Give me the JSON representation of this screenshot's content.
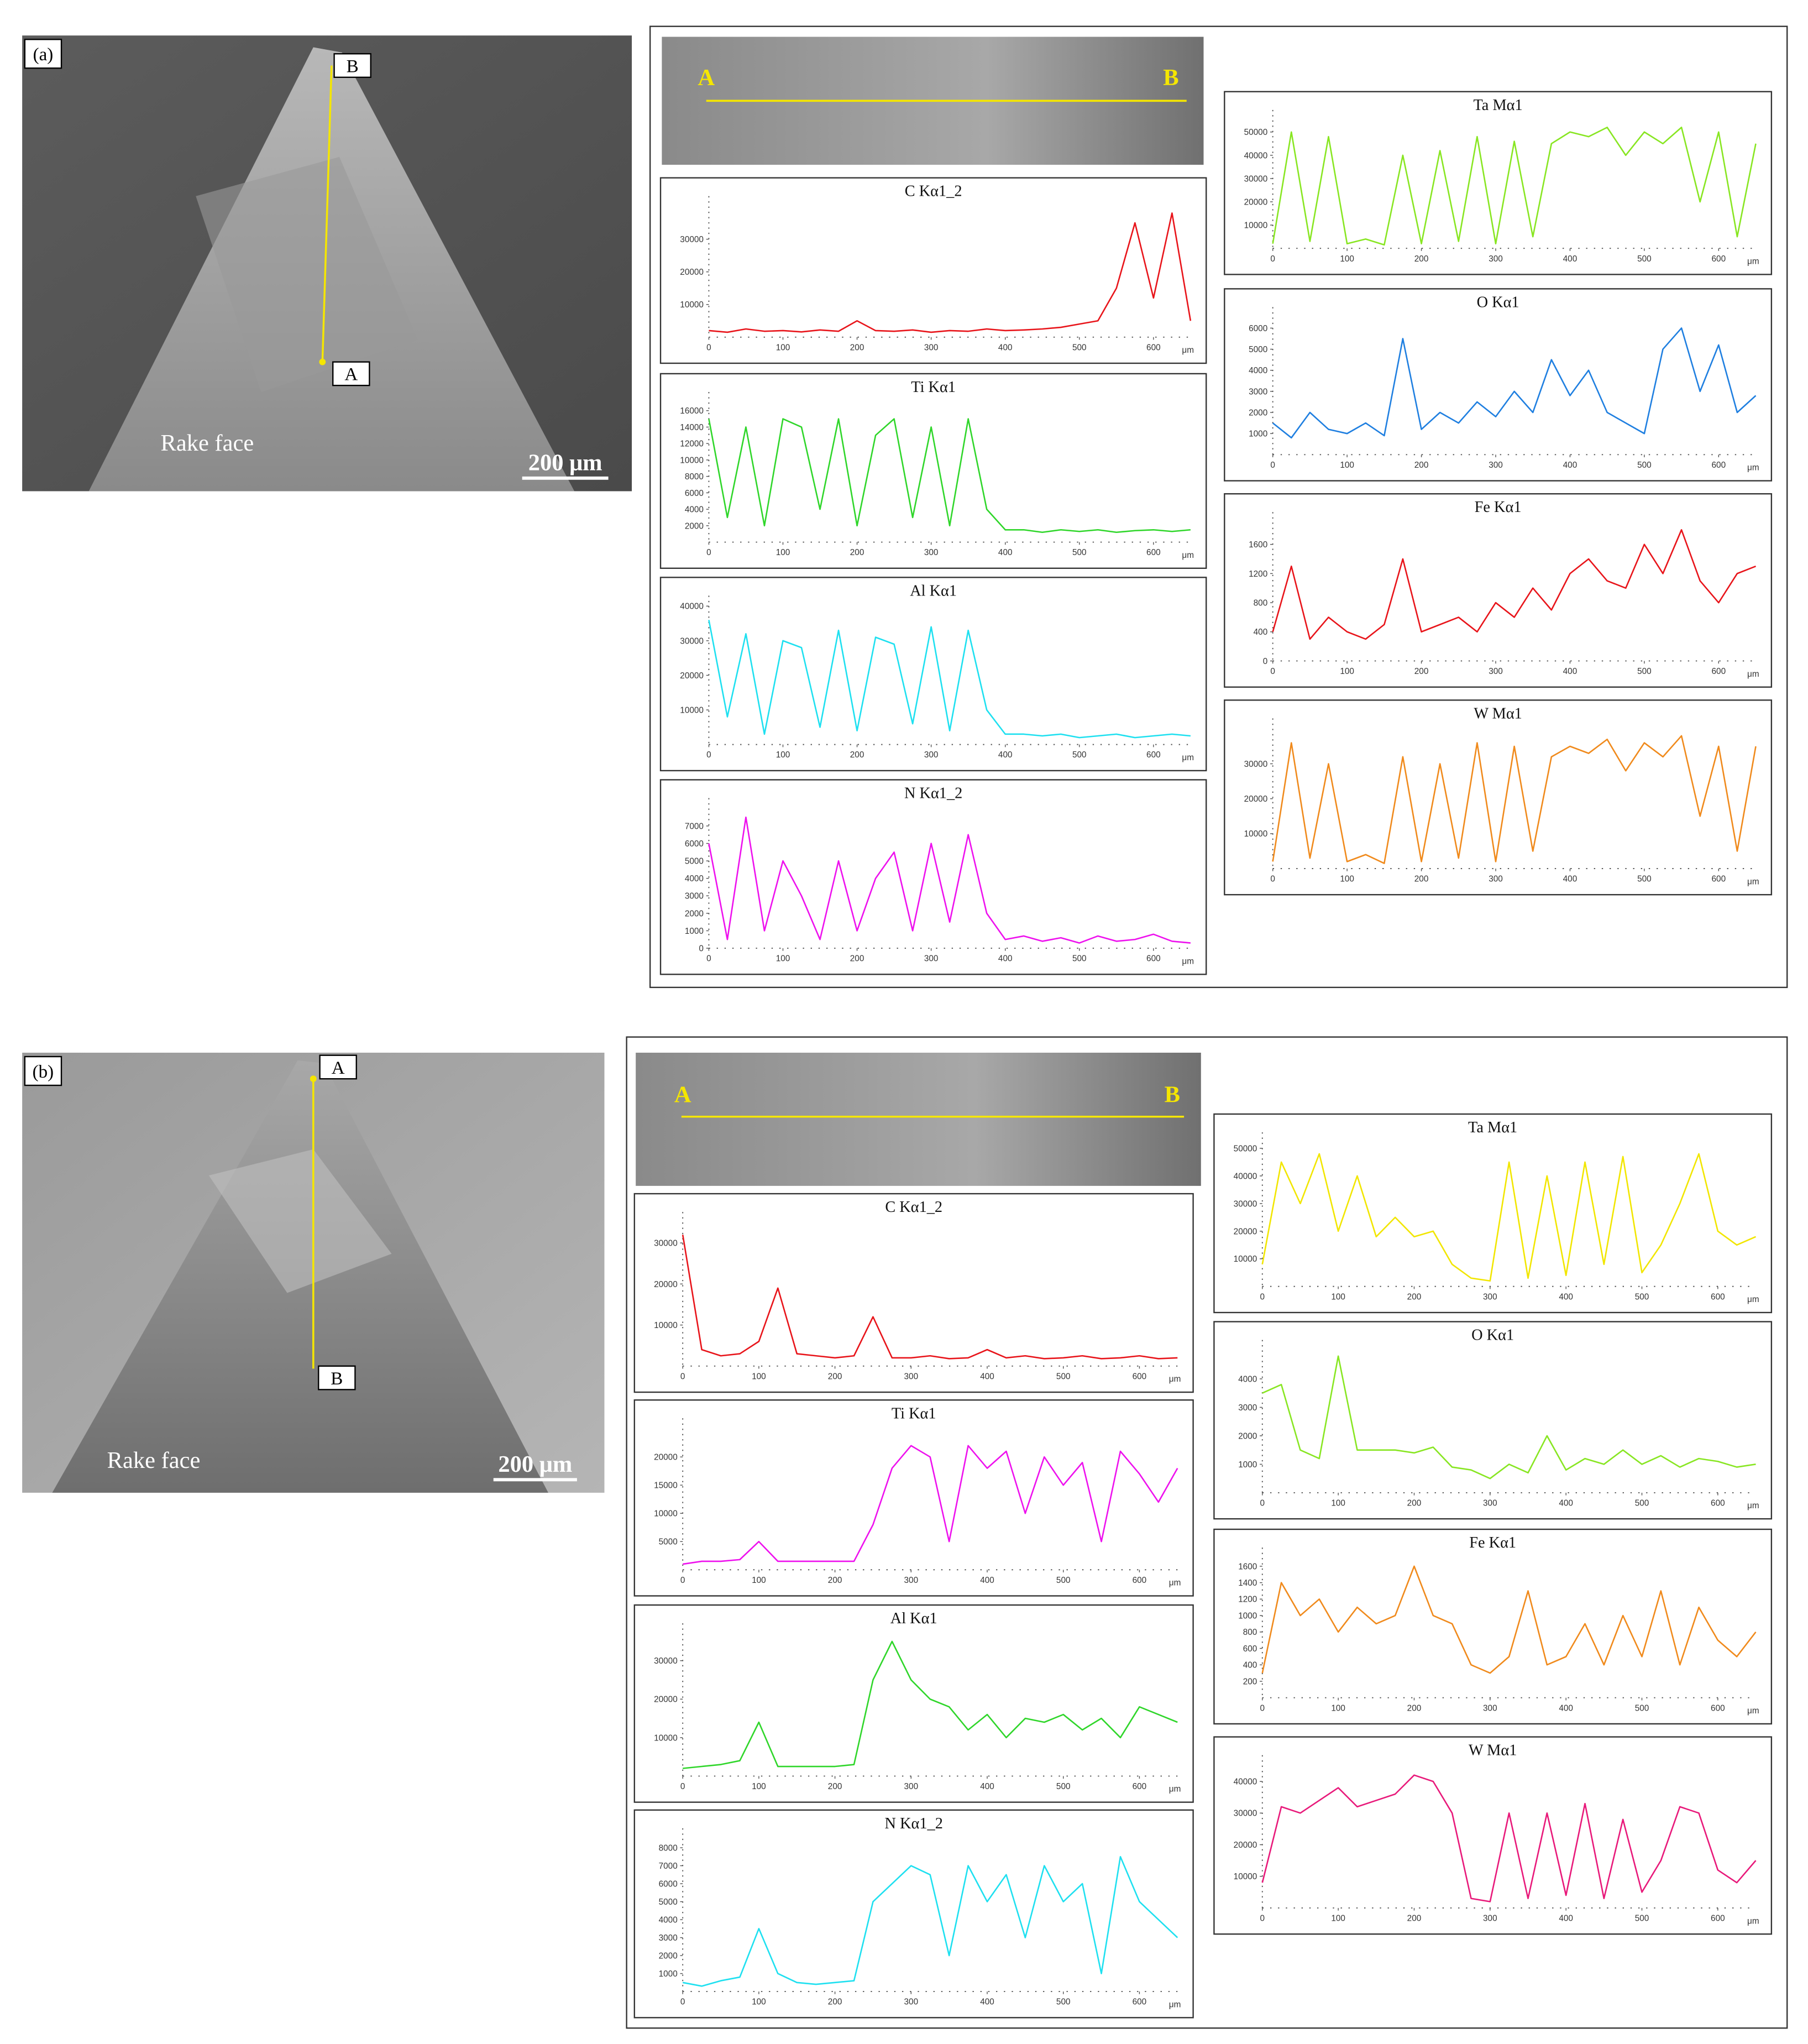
{
  "panels": [
    {
      "label": "(a)",
      "sem_top": "B",
      "sem_bottom": "A",
      "surface": "Rake face",
      "scale_bar": "200 μm",
      "strip_left": "A",
      "strip_right": "B"
    },
    {
      "label": "(b)",
      "sem_top": "A",
      "sem_bottom": "B",
      "surface": "Rake face",
      "scale_bar": "200 μm",
      "strip_left": "A",
      "strip_right": "B"
    }
  ],
  "chart_data": [
    {
      "type": "line",
      "title": "C Kα1_2",
      "color": "#e8141a",
      "xlabel": "μm",
      "xlim": [
        0,
        650
      ],
      "xticks": [
        0,
        100,
        200,
        300,
        400,
        500,
        600
      ],
      "ylim": [
        0,
        40000
      ],
      "yticks": [
        10000,
        20000,
        30000
      ],
      "x": [
        0,
        25,
        50,
        75,
        100,
        125,
        150,
        175,
        200,
        225,
        250,
        275,
        300,
        325,
        350,
        375,
        400,
        425,
        450,
        475,
        500,
        525,
        550,
        575,
        600,
        625,
        650
      ],
      "values": [
        2000,
        1500,
        2500,
        1800,
        2000,
        1600,
        2200,
        1800,
        5000,
        2000,
        1800,
        2200,
        1500,
        2000,
        1800,
        2500,
        2000,
        2200,
        2500,
        3000,
        4000,
        5000,
        15000,
        35000,
        12000,
        38000,
        5000
      ]
    },
    {
      "type": "line",
      "title": "Ti Kα1",
      "color": "#2fd62a",
      "xlabel": "μm",
      "xlim": [
        0,
        650
      ],
      "xticks": [
        0,
        100,
        200,
        300,
        400,
        500,
        600
      ],
      "ylim": [
        0,
        17000
      ],
      "yticks": [
        2000,
        4000,
        6000,
        8000,
        10000,
        12000,
        14000,
        16000
      ],
      "x": [
        0,
        25,
        50,
        75,
        100,
        125,
        150,
        175,
        200,
        225,
        250,
        275,
        300,
        325,
        350,
        375,
        400,
        425,
        450,
        475,
        500,
        525,
        550,
        575,
        600,
        625,
        650
      ],
      "values": [
        15000,
        3000,
        14000,
        2000,
        15000,
        14000,
        4000,
        15000,
        2000,
        13000,
        15000,
        3000,
        14000,
        2000,
        15000,
        4000,
        1500,
        1500,
        1200,
        1500,
        1300,
        1500,
        1200,
        1400,
        1500,
        1300,
        1500
      ]
    },
    {
      "type": "line",
      "title": "Al Kα1",
      "color": "#1ee0f0",
      "xlabel": "μm",
      "xlim": [
        0,
        650
      ],
      "xticks": [
        0,
        100,
        200,
        300,
        400,
        500,
        600
      ],
      "ylim": [
        0,
        40000
      ],
      "yticks": [
        10000,
        20000,
        30000,
        40000
      ],
      "x": [
        0,
        25,
        50,
        75,
        100,
        125,
        150,
        175,
        200,
        225,
        250,
        275,
        300,
        325,
        350,
        375,
        400,
        425,
        450,
        475,
        500,
        525,
        550,
        575,
        600,
        625,
        650
      ],
      "values": [
        36000,
        8000,
        32000,
        3000,
        30000,
        28000,
        5000,
        33000,
        4000,
        31000,
        29000,
        6000,
        34000,
        4000,
        33000,
        10000,
        3000,
        3000,
        2500,
        3000,
        2000,
        2500,
        3000,
        2000,
        2500,
        3000,
        2500
      ]
    },
    {
      "type": "line",
      "title": "N Kα1_2",
      "color": "#ee11ee",
      "xlabel": "μm",
      "xlim": [
        0,
        650
      ],
      "xticks": [
        0,
        100,
        200,
        300,
        400,
        500,
        600
      ],
      "ylim": [
        0,
        8000
      ],
      "yticks": [
        0,
        1000,
        2000,
        3000,
        4000,
        5000,
        6000,
        7000
      ],
      "x": [
        0,
        25,
        50,
        75,
        100,
        125,
        150,
        175,
        200,
        225,
        250,
        275,
        300,
        325,
        350,
        375,
        400,
        425,
        450,
        475,
        500,
        525,
        550,
        575,
        600,
        625,
        650
      ],
      "values": [
        6000,
        500,
        7500,
        1000,
        5000,
        3000,
        500,
        5000,
        1000,
        4000,
        5500,
        1000,
        6000,
        1500,
        6500,
        2000,
        500,
        700,
        400,
        600,
        300,
        700,
        400,
        500,
        800,
        400,
        300
      ]
    },
    {
      "type": "line",
      "title": "Ta Mα1",
      "color": "#88e622",
      "xlabel": "μm",
      "xlim": [
        0,
        650
      ],
      "xticks": [
        0,
        100,
        200,
        300,
        400,
        500,
        600
      ],
      "ylim": [
        0,
        55000
      ],
      "yticks": [
        10000,
        20000,
        30000,
        40000,
        50000
      ],
      "x": [
        0,
        25,
        50,
        75,
        100,
        125,
        150,
        175,
        200,
        225,
        250,
        275,
        300,
        325,
        350,
        375,
        400,
        425,
        450,
        475,
        500,
        525,
        550,
        575,
        600,
        625,
        650
      ],
      "values": [
        2000,
        50000,
        3000,
        48000,
        2000,
        4000,
        1500,
        40000,
        2000,
        42000,
        3000,
        48000,
        2000,
        46000,
        5000,
        45000,
        50000,
        48000,
        52000,
        40000,
        50000,
        45000,
        52000,
        20000,
        50000,
        5000,
        45000
      ]
    },
    {
      "type": "line",
      "title": "O Kα1",
      "color": "#1f7fe0",
      "xlabel": "μm",
      "xlim": [
        0,
        650
      ],
      "xticks": [
        0,
        100,
        200,
        300,
        400,
        500,
        600
      ],
      "ylim": [
        0,
        6500
      ],
      "yticks": [
        1000,
        2000,
        3000,
        4000,
        5000,
        6000
      ],
      "x": [
        0,
        25,
        50,
        75,
        100,
        125,
        150,
        175,
        200,
        225,
        250,
        275,
        300,
        325,
        350,
        375,
        400,
        425,
        450,
        475,
        500,
        525,
        550,
        575,
        600,
        625,
        650
      ],
      "values": [
        1500,
        800,
        2000,
        1200,
        1000,
        1500,
        900,
        5500,
        1200,
        2000,
        1500,
        2500,
        1800,
        3000,
        2000,
        4500,
        2800,
        4000,
        2000,
        1500,
        1000,
        5000,
        6000,
        3000,
        5200,
        2000,
        2800
      ]
    },
    {
      "type": "line",
      "title": "Fe Kα1",
      "color": "#e8141a",
      "xlabel": "μm",
      "xlim": [
        0,
        650
      ],
      "xticks": [
        0,
        100,
        200,
        300,
        400,
        500,
        600
      ],
      "ylim": [
        0,
        1900
      ],
      "yticks": [
        0,
        400,
        800,
        1200,
        1600
      ],
      "x": [
        0,
        25,
        50,
        75,
        100,
        125,
        150,
        175,
        200,
        225,
        250,
        275,
        300,
        325,
        350,
        375,
        400,
        425,
        450,
        475,
        500,
        525,
        550,
        575,
        600,
        625,
        650
      ],
      "values": [
        400,
        1300,
        300,
        600,
        400,
        300,
        500,
        1400,
        400,
        500,
        600,
        400,
        800,
        600,
        1000,
        700,
        1200,
        1400,
        1100,
        1000,
        1600,
        1200,
        1800,
        1100,
        800,
        1200,
        1300
      ]
    },
    {
      "type": "line",
      "title": "W Mα1",
      "color": "#f08a1c",
      "xlabel": "μm",
      "xlim": [
        0,
        650
      ],
      "xticks": [
        0,
        100,
        200,
        300,
        400,
        500,
        600
      ],
      "ylim": [
        0,
        40000
      ],
      "yticks": [
        10000,
        20000,
        30000
      ],
      "x": [
        0,
        25,
        50,
        75,
        100,
        125,
        150,
        175,
        200,
        225,
        250,
        275,
        300,
        325,
        350,
        375,
        400,
        425,
        450,
        475,
        500,
        525,
        550,
        575,
        600,
        625,
        650
      ],
      "values": [
        2000,
        36000,
        3000,
        30000,
        2000,
        4000,
        1500,
        32000,
        2000,
        30000,
        3000,
        36000,
        2000,
        35000,
        5000,
        32000,
        35000,
        33000,
        37000,
        28000,
        36000,
        32000,
        38000,
        15000,
        35000,
        5000,
        35000
      ]
    },
    {
      "type": "line",
      "title": "C Kα1_2",
      "color": "#e8141a",
      "xlabel": "μm",
      "xlim": [
        0,
        650
      ],
      "xticks": [
        0,
        100,
        200,
        300,
        400,
        500,
        600
      ],
      "ylim": [
        0,
        35000
      ],
      "yticks": [
        10000,
        20000,
        30000
      ],
      "x": [
        0,
        25,
        50,
        75,
        100,
        125,
        150,
        175,
        200,
        225,
        250,
        275,
        300,
        325,
        350,
        375,
        400,
        425,
        450,
        475,
        500,
        525,
        550,
        575,
        600,
        625,
        650
      ],
      "values": [
        32000,
        4000,
        2500,
        3000,
        6000,
        19000,
        3000,
        2500,
        2000,
        2500,
        12000,
        2000,
        2000,
        2500,
        1800,
        2000,
        4000,
        2000,
        2500,
        1800,
        2000,
        2500,
        1800,
        2000,
        2500,
        1800,
        2000
      ]
    },
    {
      "type": "line",
      "title": "Ti Kα1",
      "color": "#ee11ee",
      "xlabel": "μm",
      "xlim": [
        0,
        650
      ],
      "xticks": [
        0,
        100,
        200,
        300,
        400,
        500,
        600
      ],
      "ylim": [
        0,
        25000
      ],
      "yticks": [
        5000,
        10000,
        15000,
        20000
      ],
      "x": [
        0,
        25,
        50,
        75,
        100,
        125,
        150,
        175,
        200,
        225,
        250,
        275,
        300,
        325,
        350,
        375,
        400,
        425,
        450,
        475,
        500,
        525,
        550,
        575,
        600,
        625,
        650
      ],
      "values": [
        1000,
        1500,
        1500,
        1800,
        5000,
        1500,
        1500,
        1500,
        1500,
        1500,
        8000,
        18000,
        22000,
        20000,
        5000,
        22000,
        18000,
        21000,
        10000,
        20000,
        15000,
        19000,
        5000,
        21000,
        17000,
        12000,
        18000
      ]
    },
    {
      "type": "line",
      "title": "Al Kα1",
      "color": "#2fd62a",
      "xlabel": "μm",
      "xlim": [
        0,
        650
      ],
      "xticks": [
        0,
        100,
        200,
        300,
        400,
        500,
        600
      ],
      "ylim": [
        0,
        37000
      ],
      "yticks": [
        10000,
        20000,
        30000
      ],
      "x": [
        0,
        25,
        50,
        75,
        100,
        125,
        150,
        175,
        200,
        225,
        250,
        275,
        300,
        325,
        350,
        375,
        400,
        425,
        450,
        475,
        500,
        525,
        550,
        575,
        600,
        625,
        650
      ],
      "values": [
        2000,
        2500,
        3000,
        4000,
        14000,
        2500,
        2500,
        2500,
        2500,
        3000,
        25000,
        35000,
        25000,
        20000,
        18000,
        12000,
        16000,
        10000,
        15000,
        14000,
        16000,
        12000,
        15000,
        10000,
        18000,
        16000,
        14000
      ]
    },
    {
      "type": "line",
      "title": "N Kα1_2",
      "color": "#1ee0f0",
      "xlabel": "μm",
      "xlim": [
        0,
        650
      ],
      "xticks": [
        0,
        100,
        200,
        300,
        400,
        500,
        600
      ],
      "ylim": [
        0,
        8500
      ],
      "yticks": [
        1000,
        2000,
        3000,
        4000,
        5000,
        6000,
        7000,
        8000
      ],
      "x": [
        0,
        25,
        50,
        75,
        100,
        125,
        150,
        175,
        200,
        225,
        250,
        275,
        300,
        325,
        350,
        375,
        400,
        425,
        450,
        475,
        500,
        525,
        550,
        575,
        600,
        625,
        650
      ],
      "values": [
        500,
        300,
        600,
        800,
        3500,
        1000,
        500,
        400,
        500,
        600,
        5000,
        6000,
        7000,
        6500,
        2000,
        7000,
        5000,
        6500,
        3000,
        7000,
        5000,
        6000,
        1000,
        7500,
        5000,
        4000,
        3000
      ]
    },
    {
      "type": "line",
      "title": "Ta Mα1",
      "color": "#f2e600",
      "xlabel": "μm",
      "xlim": [
        0,
        650
      ],
      "xticks": [
        0,
        100,
        200,
        300,
        400,
        500,
        600
      ],
      "ylim": [
        0,
        52000
      ],
      "yticks": [
        10000,
        20000,
        30000,
        40000,
        50000
      ],
      "x": [
        0,
        25,
        50,
        75,
        100,
        125,
        150,
        175,
        200,
        225,
        250,
        275,
        300,
        325,
        350,
        375,
        400,
        425,
        450,
        475,
        500,
        525,
        550,
        575,
        600,
        625,
        650
      ],
      "values": [
        8000,
        45000,
        30000,
        48000,
        20000,
        40000,
        18000,
        25000,
        18000,
        20000,
        8000,
        3000,
        2000,
        45000,
        3000,
        40000,
        4000,
        45000,
        8000,
        47000,
        5000,
        15000,
        30000,
        48000,
        20000,
        15000,
        18000
      ]
    },
    {
      "type": "line",
      "title": "O Kα1",
      "color": "#88e622",
      "xlabel": "μm",
      "xlim": [
        0,
        650
      ],
      "xticks": [
        0,
        100,
        200,
        300,
        400,
        500,
        600
      ],
      "ylim": [
        0,
        5000
      ],
      "yticks": [
        1000,
        2000,
        3000,
        4000
      ],
      "x": [
        0,
        25,
        50,
        75,
        100,
        125,
        150,
        175,
        200,
        225,
        250,
        275,
        300,
        325,
        350,
        375,
        400,
        425,
        450,
        475,
        500,
        525,
        550,
        575,
        600,
        625,
        650
      ],
      "values": [
        3500,
        3800,
        1500,
        1200,
        4800,
        1500,
        1500,
        1500,
        1400,
        1600,
        900,
        800,
        500,
        1000,
        700,
        2000,
        800,
        1200,
        1000,
        1500,
        1000,
        1300,
        900,
        1200,
        1100,
        900,
        1000
      ]
    },
    {
      "type": "line",
      "title": "Fe Kα1",
      "color": "#f08a1c",
      "xlabel": "μm",
      "xlim": [
        0,
        650
      ],
      "xticks": [
        0,
        100,
        200,
        300,
        400,
        500,
        600
      ],
      "ylim": [
        0,
        1700
      ],
      "yticks": [
        200,
        400,
        600,
        800,
        1000,
        1200,
        1400,
        1600
      ],
      "x": [
        0,
        25,
        50,
        75,
        100,
        125,
        150,
        175,
        200,
        225,
        250,
        275,
        300,
        325,
        350,
        375,
        400,
        425,
        450,
        475,
        500,
        525,
        550,
        575,
        600,
        625,
        650
      ],
      "values": [
        300,
        1400,
        1000,
        1200,
        800,
        1100,
        900,
        1000,
        1600,
        1000,
        900,
        400,
        300,
        500,
        1300,
        400,
        500,
        900,
        400,
        1000,
        500,
        1300,
        400,
        1100,
        700,
        500,
        800
      ]
    },
    {
      "type": "line",
      "title": "W Mα1",
      "color": "#e8197a",
      "xlabel": "μm",
      "xlim": [
        0,
        650
      ],
      "xticks": [
        0,
        100,
        200,
        300,
        400,
        500,
        600
      ],
      "ylim": [
        0,
        45000
      ],
      "yticks": [
        10000,
        20000,
        30000,
        40000
      ],
      "x": [
        0,
        25,
        50,
        75,
        100,
        125,
        150,
        175,
        200,
        225,
        250,
        275,
        300,
        325,
        350,
        375,
        400,
        425,
        450,
        475,
        500,
        525,
        550,
        575,
        600,
        625,
        650
      ],
      "values": [
        8000,
        32000,
        30000,
        34000,
        38000,
        32000,
        34000,
        36000,
        42000,
        40000,
        30000,
        3000,
        2000,
        30000,
        3000,
        30000,
        4000,
        33000,
        3000,
        28000,
        5000,
        15000,
        32000,
        30000,
        12000,
        8000,
        15000
      ]
    }
  ]
}
